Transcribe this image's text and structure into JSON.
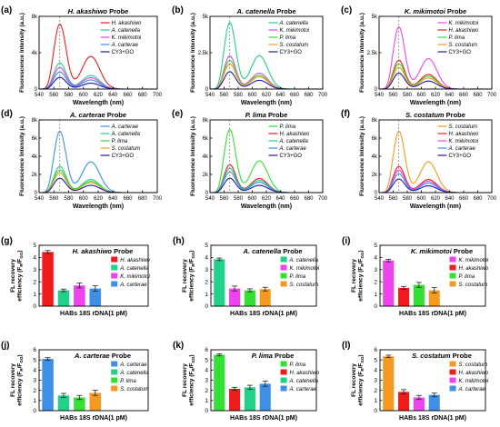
{
  "colors": {
    "H. akashiwo": "#ee1c1c",
    "A. catenella": "#22d08a",
    "K. mikimotoi": "#ee44ee",
    "A. carterae": "#3f8fe6",
    "P. lima": "#33e033",
    "S. costatum": "#f59a20",
    "CY3+GO": "#1a1aa8"
  },
  "chart_data": [
    {
      "panel": "(a)",
      "type": "line",
      "title": "H. akashiwo Probe",
      "xlabel": "Wavelength (nm)",
      "ylabel": "Fluorescence Intensity (a.u.)",
      "xlim": [
        540,
        700
      ],
      "ylim": [
        0,
        8000
      ],
      "xticks": [
        540,
        560,
        580,
        600,
        620,
        640,
        660,
        680,
        700
      ],
      "yticks": [
        {
          "value": 0,
          "label": "0"
        },
        {
          "value": 4000,
          "label": "4k"
        },
        {
          "value": 8000,
          "label": "8k"
        }
      ],
      "series": [
        {
          "name": "H. akashiwo",
          "peak": 7200,
          "shoulder": 3600
        },
        {
          "name": "A. catenella",
          "peak": 2900,
          "shoulder": 1500
        },
        {
          "name": "K. mikimotoi",
          "peak": 2400,
          "shoulder": 1250
        },
        {
          "name": "A. carterae",
          "peak": 1900,
          "shoulder": 1000
        },
        {
          "name": "CY3+GO",
          "peak": 1300,
          "shoulder": 650
        }
      ]
    },
    {
      "panel": "(b)",
      "type": "line",
      "title": "A. catenella Probe",
      "xlabel": "Wavelength (nm)",
      "ylabel": "Fluorescence Intensity (a.u.)",
      "xlim": [
        540,
        700
      ],
      "ylim": [
        0,
        5000
      ],
      "xticks": [
        540,
        560,
        580,
        600,
        620,
        640,
        660,
        680,
        700
      ],
      "yticks": [
        {
          "value": 0,
          "label": "0"
        },
        {
          "value": 2500,
          "label": "2.5k"
        },
        {
          "value": 5000,
          "label": "5k"
        }
      ],
      "series": [
        {
          "name": "A. catenella",
          "peak": 4600,
          "shoulder": 2300
        },
        {
          "name": "K. mikimotoi",
          "peak": 2300,
          "shoulder": 1100
        },
        {
          "name": "P. lima",
          "peak": 2000,
          "shoulder": 950
        },
        {
          "name": "S. costatum",
          "peak": 1750,
          "shoulder": 850
        },
        {
          "name": "CY3+GO",
          "peak": 1200,
          "shoulder": 600
        }
      ]
    },
    {
      "panel": "(c)",
      "type": "line",
      "title": "K. mikimotoi Probe",
      "xlabel": "Wavelength (nm)",
      "ylabel": "Fluorescence Intensity (a.u.)",
      "xlim": [
        540,
        700
      ],
      "ylim": [
        0,
        5000
      ],
      "xticks": [
        540,
        560,
        580,
        600,
        620,
        640,
        660,
        680,
        700
      ],
      "yticks": [
        {
          "value": 0,
          "label": "0"
        },
        {
          "value": 2500,
          "label": "2.5k"
        },
        {
          "value": 5000,
          "label": "5k"
        }
      ],
      "series": [
        {
          "name": "K. mikimotoi",
          "peak": 4300,
          "shoulder": 2100
        },
        {
          "name": "H. akashiwo",
          "peak": 2000,
          "shoulder": 1000
        },
        {
          "name": "P. lima",
          "peak": 1750,
          "shoulder": 880
        },
        {
          "name": "S. costatum",
          "peak": 1500,
          "shoulder": 760
        },
        {
          "name": "CY3+GO",
          "peak": 1100,
          "shoulder": 550
        }
      ]
    },
    {
      "panel": "(d)",
      "type": "line",
      "title": "A. carterae Probe",
      "xlabel": "Wavelength (nm)",
      "ylabel": "Fluorescence Intensity (a.u.)",
      "xlim": [
        540,
        700
      ],
      "ylim": [
        0,
        8000
      ],
      "xticks": [
        540,
        560,
        580,
        600,
        620,
        640,
        660,
        680,
        700
      ],
      "yticks": [
        {
          "value": 0,
          "label": "0"
        },
        {
          "value": 2000,
          "label": "2k"
        },
        {
          "value": 4000,
          "label": "4k"
        },
        {
          "value": 6000,
          "label": "6k"
        },
        {
          "value": 8000,
          "label": "8k"
        }
      ],
      "series": [
        {
          "name": "A. carterae",
          "peak": 6800,
          "shoulder": 3400
        },
        {
          "name": "A. catenella",
          "peak": 2900,
          "shoulder": 1450
        },
        {
          "name": "P. lima",
          "peak": 2500,
          "shoulder": 1250
        },
        {
          "name": "S. costatum",
          "peak": 2200,
          "shoulder": 1100
        },
        {
          "name": "CY3+GO",
          "peak": 1600,
          "shoulder": 800
        }
      ]
    },
    {
      "panel": "(e)",
      "type": "line",
      "title": "P. lima Probe",
      "xlabel": "Wavelength (nm)",
      "ylabel": "Fluorescence Intensity (a.u.)",
      "xlim": [
        540,
        700
      ],
      "ylim": [
        0,
        8000
      ],
      "xticks": [
        540,
        560,
        580,
        600,
        620,
        640,
        660,
        680,
        700
      ],
      "yticks": [
        {
          "value": 0,
          "label": "0"
        },
        {
          "value": 2000,
          "label": "2k"
        },
        {
          "value": 4000,
          "label": "4k"
        },
        {
          "value": 6000,
          "label": "6k"
        },
        {
          "value": 8000,
          "label": "8k"
        }
      ],
      "series": [
        {
          "name": "P. lima",
          "peak": 7000,
          "shoulder": 3500
        },
        {
          "name": "H. akashiwo",
          "peak": 3100,
          "shoulder": 1550
        },
        {
          "name": "A. catenella",
          "peak": 2700,
          "shoulder": 1350
        },
        {
          "name": "A. carterae",
          "peak": 2300,
          "shoulder": 1150
        },
        {
          "name": "CY3+GO",
          "peak": 1600,
          "shoulder": 800
        }
      ]
    },
    {
      "panel": "(f)",
      "type": "line",
      "title": "S. costatum Probe",
      "xlabel": "Wavelength (nm)",
      "ylabel": "Fluorescence Intensity (a.u.)",
      "xlim": [
        540,
        700
      ],
      "ylim": [
        0,
        8000
      ],
      "xticks": [
        540,
        560,
        580,
        600,
        620,
        640,
        660,
        680,
        700
      ],
      "yticks": [
        {
          "value": 0,
          "label": "0"
        },
        {
          "value": 2000,
          "label": "2k"
        },
        {
          "value": 4000,
          "label": "4k"
        },
        {
          "value": 6000,
          "label": "6k"
        },
        {
          "value": 8000,
          "label": "8k"
        }
      ],
      "series": [
        {
          "name": "S. costatum",
          "peak": 6800,
          "shoulder": 3400
        },
        {
          "name": "H. akashiwo",
          "peak": 2900,
          "shoulder": 1450
        },
        {
          "name": "K. mikimotoi",
          "peak": 2500,
          "shoulder": 1250
        },
        {
          "name": "A. carterae",
          "peak": 2100,
          "shoulder": 1050
        },
        {
          "name": "CY3+GO",
          "peak": 1500,
          "shoulder": 750
        }
      ]
    },
    {
      "panel": "(g)",
      "type": "bar",
      "title": "H. akashiwo Probe",
      "xlabel": "HABs 18S rDNA(1 pM)",
      "ylabel": "FL recovery efficiency (F_R/F_{GO})",
      "ylim": [
        0,
        5
      ],
      "yticks": [
        0,
        1,
        2,
        3,
        4,
        5
      ],
      "categories": [
        "H. akashiwo",
        "A. catenella",
        "K. mikimotoi",
        "A. carterae"
      ],
      "values": [
        4.45,
        1.3,
        1.7,
        1.45
      ],
      "errors": [
        0.12,
        0.1,
        0.2,
        0.22
      ]
    },
    {
      "panel": "(h)",
      "type": "bar",
      "title": "A. catenella Probe",
      "xlabel": "HABs 18S rDNA(1 pM)",
      "ylabel": "FL recovery efficiency (F_R/F_{GO})",
      "ylim": [
        0,
        5
      ],
      "yticks": [
        0,
        1,
        2,
        3,
        4,
        5
      ],
      "categories": [
        "A. catenella",
        "K. mikimotoi",
        "P. lima",
        "S. costatum"
      ],
      "values": [
        3.85,
        1.45,
        1.3,
        1.4
      ],
      "errors": [
        0.1,
        0.2,
        0.12,
        0.15
      ]
    },
    {
      "panel": "(i)",
      "type": "bar",
      "title": "K. mikimotoi Probe",
      "xlabel": "HABs 18S rDNA(1 pM)",
      "ylabel": "FL recovery efficiency (F_R/F_{GO})",
      "ylim": [
        0,
        5
      ],
      "yticks": [
        0,
        1,
        2,
        3,
        4,
        5
      ],
      "categories": [
        "K. mikimotoi",
        "H. akashiwo",
        "P. lima",
        "S. costatum"
      ],
      "values": [
        3.75,
        1.5,
        1.75,
        1.3
      ],
      "errors": [
        0.1,
        0.12,
        0.2,
        0.22
      ]
    },
    {
      "panel": "(j)",
      "type": "bar",
      "title": "A. carterae Probe",
      "xlabel": "HABs 18S rDNA(1 pM)",
      "ylabel": "FL recovery efficiency (F_R/F_{GO})",
      "ylim": [
        0,
        6
      ],
      "yticks": [
        0,
        1,
        2,
        3,
        4,
        5,
        6
      ],
      "categories": [
        "A. carterae",
        "A. catenella",
        "P. lima",
        "S. costatum"
      ],
      "values": [
        5.1,
        1.5,
        1.3,
        1.75
      ],
      "errors": [
        0.12,
        0.2,
        0.2,
        0.25
      ]
    },
    {
      "panel": "(k)",
      "type": "bar",
      "title": "P. lima Probe",
      "xlabel": "HABs 18S rDNA(1 pM)",
      "ylabel": "FL recovery efficiency (F_R/F_{GO})",
      "ylim": [
        0,
        6
      ],
      "yticks": [
        0,
        1,
        2,
        3,
        4,
        5,
        6
      ],
      "categories": [
        "P. lima",
        "H. akashiwo",
        "A. catenella",
        "A. carterae"
      ],
      "values": [
        5.5,
        2.15,
        2.3,
        2.65
      ],
      "errors": [
        0.1,
        0.15,
        0.2,
        0.25
      ]
    },
    {
      "panel": "(l)",
      "type": "bar",
      "title": "S. costatum Probe",
      "xlabel": "HABs 18S rDNA(1 pM)",
      "ylabel": "FL recovery efficiency (F_R/F_{GO})",
      "ylim": [
        0,
        6
      ],
      "yticks": [
        0,
        1,
        2,
        3,
        4,
        5,
        6
      ],
      "categories": [
        "S. costatum",
        "H. akashiwo",
        "K. mikimotoi",
        "A. carterae"
      ],
      "values": [
        5.35,
        1.85,
        1.3,
        1.55
      ],
      "errors": [
        0.12,
        0.22,
        0.2,
        0.18
      ]
    }
  ]
}
